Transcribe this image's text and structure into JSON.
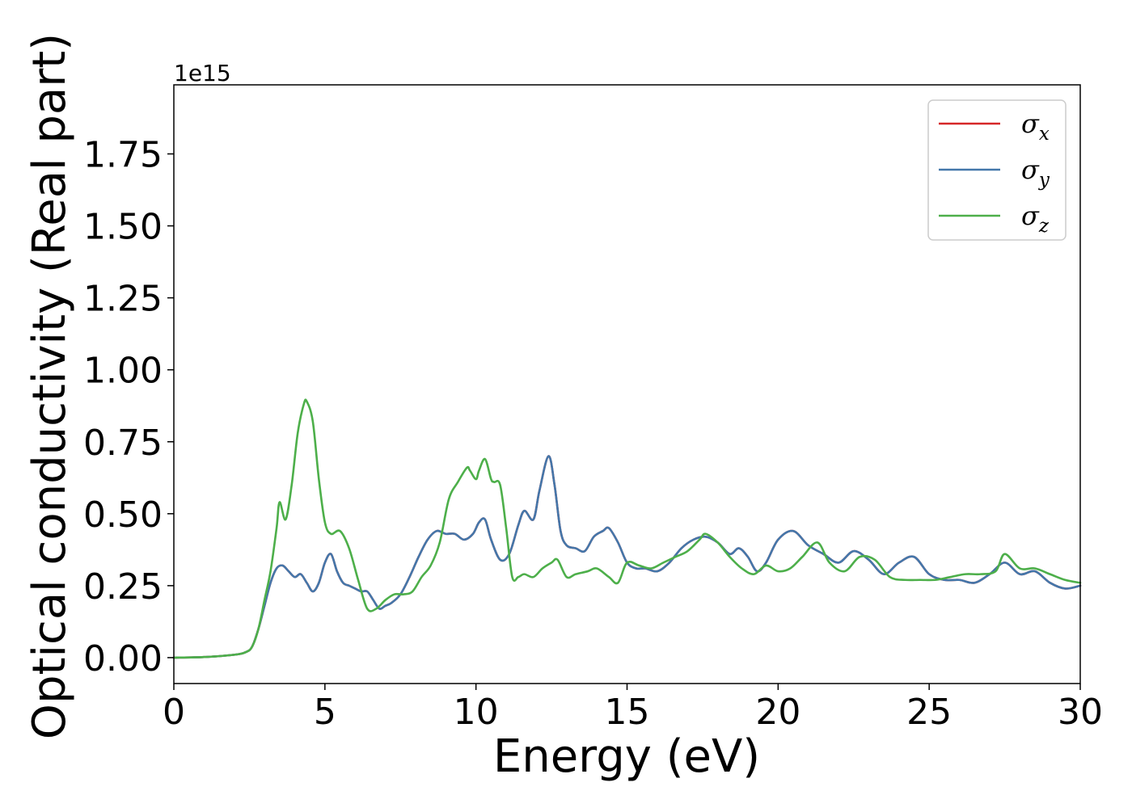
{
  "chart_data": {
    "type": "line",
    "xlabel": "Energy (eV)",
    "ylabel": "Optical conductivity (Real part)",
    "y_offset_label": "1e15",
    "xlim": [
      0,
      30
    ],
    "ylim": [
      -0.09,
      1.99
    ],
    "x_ticks": [
      0,
      5,
      10,
      15,
      20,
      25,
      30
    ],
    "x_tick_labels": [
      "0",
      "5",
      "10",
      "15",
      "20",
      "25",
      "30"
    ],
    "y_ticks": [
      0.0,
      0.25,
      0.5,
      0.75,
      1.0,
      1.25,
      1.5,
      1.75
    ],
    "y_tick_labels": [
      "0.00",
      "0.25",
      "0.50",
      "0.75",
      "1.00",
      "1.25",
      "1.50",
      "1.75"
    ],
    "grid": false,
    "legend_position": "top-right",
    "series": [
      {
        "name": "σx",
        "legend_base": "σ",
        "legend_sub": "x",
        "color": "#d62728",
        "x": [
          0,
          1,
          2,
          2.4,
          2.6,
          2.8,
          3.0,
          3.2,
          3.4,
          3.6,
          3.8,
          4.0,
          4.2,
          4.4,
          4.6,
          4.8,
          5.0,
          5.2,
          5.4,
          5.6,
          5.8,
          6.0,
          6.2,
          6.4,
          6.6,
          6.8,
          7.0,
          7.2,
          7.5,
          7.8,
          8.1,
          8.4,
          8.7,
          9.0,
          9.3,
          9.6,
          9.9,
          10.1,
          10.3,
          10.5,
          10.8,
          11.1,
          11.4,
          11.6,
          11.9,
          12.1,
          12.4,
          12.6,
          12.8,
          13.0,
          13.3,
          13.6,
          13.9,
          14.2,
          14.4,
          14.7,
          15.0,
          15.3,
          15.6,
          16.0,
          16.4,
          16.8,
          17.2,
          17.6,
          18.0,
          18.4,
          18.7,
          19.0,
          19.3,
          19.6,
          20.0,
          20.5,
          21.0,
          21.5,
          22.0,
          22.5,
          23.0,
          23.5,
          24.0,
          24.5,
          25.0,
          25.5,
          26.0,
          26.5,
          27.0,
          27.5,
          28.0,
          28.5,
          29.0,
          29.5,
          30.0
        ],
        "y": [
          0.0,
          0.002,
          0.01,
          0.02,
          0.04,
          0.1,
          0.18,
          0.26,
          0.31,
          0.32,
          0.3,
          0.28,
          0.29,
          0.26,
          0.23,
          0.26,
          0.33,
          0.36,
          0.3,
          0.26,
          0.25,
          0.24,
          0.23,
          0.23,
          0.2,
          0.17,
          0.18,
          0.19,
          0.22,
          0.28,
          0.35,
          0.41,
          0.44,
          0.43,
          0.43,
          0.41,
          0.43,
          0.47,
          0.48,
          0.41,
          0.34,
          0.36,
          0.46,
          0.51,
          0.48,
          0.58,
          0.7,
          0.6,
          0.44,
          0.39,
          0.38,
          0.37,
          0.42,
          0.44,
          0.45,
          0.4,
          0.33,
          0.31,
          0.31,
          0.3,
          0.33,
          0.38,
          0.41,
          0.42,
          0.4,
          0.36,
          0.38,
          0.35,
          0.3,
          0.33,
          0.41,
          0.44,
          0.39,
          0.36,
          0.33,
          0.37,
          0.34,
          0.29,
          0.33,
          0.35,
          0.29,
          0.27,
          0.27,
          0.26,
          0.29,
          0.33,
          0.29,
          0.3,
          0.26,
          0.24,
          0.25
        ]
      },
      {
        "name": "σy",
        "legend_base": "σ",
        "legend_sub": "y",
        "color": "#4477aa",
        "x": [
          0,
          1,
          2,
          2.4,
          2.6,
          2.8,
          3.0,
          3.2,
          3.4,
          3.6,
          3.8,
          4.0,
          4.2,
          4.4,
          4.6,
          4.8,
          5.0,
          5.2,
          5.4,
          5.6,
          5.8,
          6.0,
          6.2,
          6.4,
          6.6,
          6.8,
          7.0,
          7.2,
          7.5,
          7.8,
          8.1,
          8.4,
          8.7,
          9.0,
          9.3,
          9.6,
          9.9,
          10.1,
          10.3,
          10.5,
          10.8,
          11.1,
          11.4,
          11.6,
          11.9,
          12.1,
          12.4,
          12.6,
          12.8,
          13.0,
          13.3,
          13.6,
          13.9,
          14.2,
          14.4,
          14.7,
          15.0,
          15.3,
          15.6,
          16.0,
          16.4,
          16.8,
          17.2,
          17.6,
          18.0,
          18.4,
          18.7,
          19.0,
          19.3,
          19.6,
          20.0,
          20.5,
          21.0,
          21.5,
          22.0,
          22.5,
          23.0,
          23.5,
          24.0,
          24.5,
          25.0,
          25.5,
          26.0,
          26.5,
          27.0,
          27.5,
          28.0,
          28.5,
          29.0,
          29.5,
          30.0
        ],
        "y": [
          0.0,
          0.002,
          0.01,
          0.02,
          0.04,
          0.1,
          0.18,
          0.26,
          0.31,
          0.32,
          0.3,
          0.28,
          0.29,
          0.26,
          0.23,
          0.26,
          0.33,
          0.36,
          0.3,
          0.26,
          0.25,
          0.24,
          0.23,
          0.23,
          0.2,
          0.17,
          0.18,
          0.19,
          0.22,
          0.28,
          0.35,
          0.41,
          0.44,
          0.43,
          0.43,
          0.41,
          0.43,
          0.47,
          0.48,
          0.41,
          0.34,
          0.36,
          0.46,
          0.51,
          0.48,
          0.58,
          0.7,
          0.6,
          0.44,
          0.39,
          0.38,
          0.37,
          0.42,
          0.44,
          0.45,
          0.4,
          0.33,
          0.31,
          0.31,
          0.3,
          0.33,
          0.38,
          0.41,
          0.42,
          0.4,
          0.36,
          0.38,
          0.35,
          0.3,
          0.33,
          0.41,
          0.44,
          0.39,
          0.36,
          0.33,
          0.37,
          0.34,
          0.29,
          0.33,
          0.35,
          0.29,
          0.27,
          0.27,
          0.26,
          0.29,
          0.33,
          0.29,
          0.3,
          0.26,
          0.24,
          0.25
        ]
      },
      {
        "name": "σz",
        "legend_base": "σ",
        "legend_sub": "z",
        "color": "#4daf4a",
        "x": [
          0,
          1,
          2,
          2.4,
          2.6,
          2.8,
          3.0,
          3.2,
          3.4,
          3.5,
          3.7,
          3.9,
          4.1,
          4.3,
          4.4,
          4.6,
          4.8,
          5.0,
          5.2,
          5.5,
          5.8,
          6.1,
          6.4,
          6.7,
          7.0,
          7.3,
          7.6,
          7.9,
          8.2,
          8.5,
          8.8,
          9.1,
          9.4,
          9.7,
          9.8,
          10.0,
          10.1,
          10.3,
          10.5,
          10.6,
          10.8,
          11.0,
          11.2,
          11.4,
          11.6,
          11.9,
          12.2,
          12.5,
          12.7,
          13.0,
          13.3,
          13.7,
          14.0,
          14.4,
          14.7,
          15.0,
          15.4,
          15.8,
          16.2,
          16.6,
          17.0,
          17.4,
          17.6,
          18.0,
          18.4,
          18.8,
          19.2,
          19.6,
          20.0,
          20.4,
          20.8,
          21.3,
          21.7,
          22.2,
          22.7,
          23.2,
          23.7,
          24.2,
          24.7,
          25.2,
          25.7,
          26.2,
          26.7,
          27.2,
          27.5,
          28.0,
          28.5,
          29.0,
          29.5,
          30.0
        ],
        "y": [
          0.0,
          0.002,
          0.01,
          0.02,
          0.04,
          0.1,
          0.2,
          0.3,
          0.45,
          0.54,
          0.48,
          0.6,
          0.78,
          0.88,
          0.89,
          0.82,
          0.62,
          0.47,
          0.43,
          0.44,
          0.38,
          0.27,
          0.17,
          0.17,
          0.2,
          0.22,
          0.22,
          0.23,
          0.28,
          0.32,
          0.4,
          0.55,
          0.61,
          0.66,
          0.65,
          0.62,
          0.65,
          0.69,
          0.62,
          0.61,
          0.6,
          0.45,
          0.28,
          0.28,
          0.29,
          0.28,
          0.31,
          0.33,
          0.34,
          0.28,
          0.29,
          0.3,
          0.31,
          0.28,
          0.26,
          0.33,
          0.32,
          0.31,
          0.33,
          0.35,
          0.37,
          0.41,
          0.43,
          0.4,
          0.35,
          0.31,
          0.29,
          0.32,
          0.3,
          0.31,
          0.35,
          0.4,
          0.33,
          0.3,
          0.35,
          0.34,
          0.28,
          0.27,
          0.27,
          0.27,
          0.28,
          0.29,
          0.29,
          0.3,
          0.36,
          0.31,
          0.31,
          0.29,
          0.27,
          0.26
        ]
      }
    ]
  }
}
